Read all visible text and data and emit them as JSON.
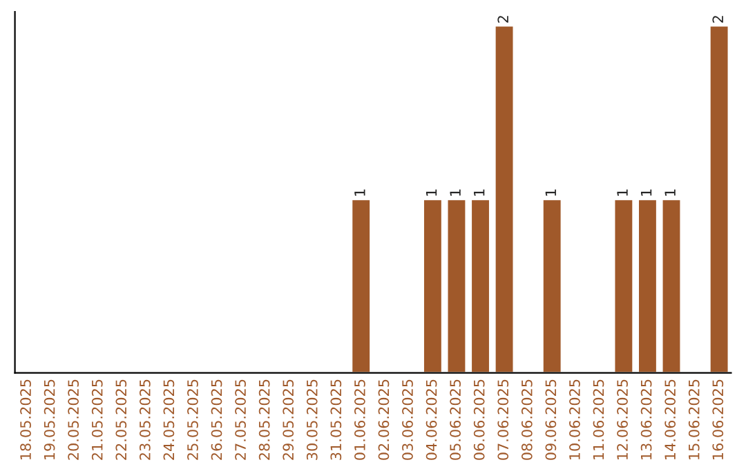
{
  "chart_data": {
    "type": "bar",
    "categories": [
      "18.05.2025",
      "19.05.2025",
      "20.05.2025",
      "21.05.2025",
      "22.05.2025",
      "23.05.2025",
      "24.05.2025",
      "25.05.2025",
      "26.05.2025",
      "27.05.2025",
      "28.05.2025",
      "29.05.2025",
      "30.05.2025",
      "31.05.2025",
      "01.06.2025",
      "02.06.2025",
      "03.06.2025",
      "04.06.2025",
      "05.06.2025",
      "06.06.2025",
      "07.06.2025",
      "08.06.2025",
      "09.06.2025",
      "10.06.2025",
      "11.06.2025",
      "12.06.2025",
      "13.06.2025",
      "14.06.2025",
      "15.06.2025",
      "16.06.2025"
    ],
    "values": [
      null,
      null,
      null,
      null,
      null,
      null,
      null,
      null,
      null,
      null,
      null,
      null,
      null,
      null,
      1,
      null,
      null,
      1,
      1,
      1,
      2,
      null,
      1,
      null,
      null,
      1,
      1,
      1,
      null,
      2
    ],
    "data_labels": true,
    "color": "#a0592a",
    "tick_labels": "x",
    "grid": false,
    "legend": false
  }
}
